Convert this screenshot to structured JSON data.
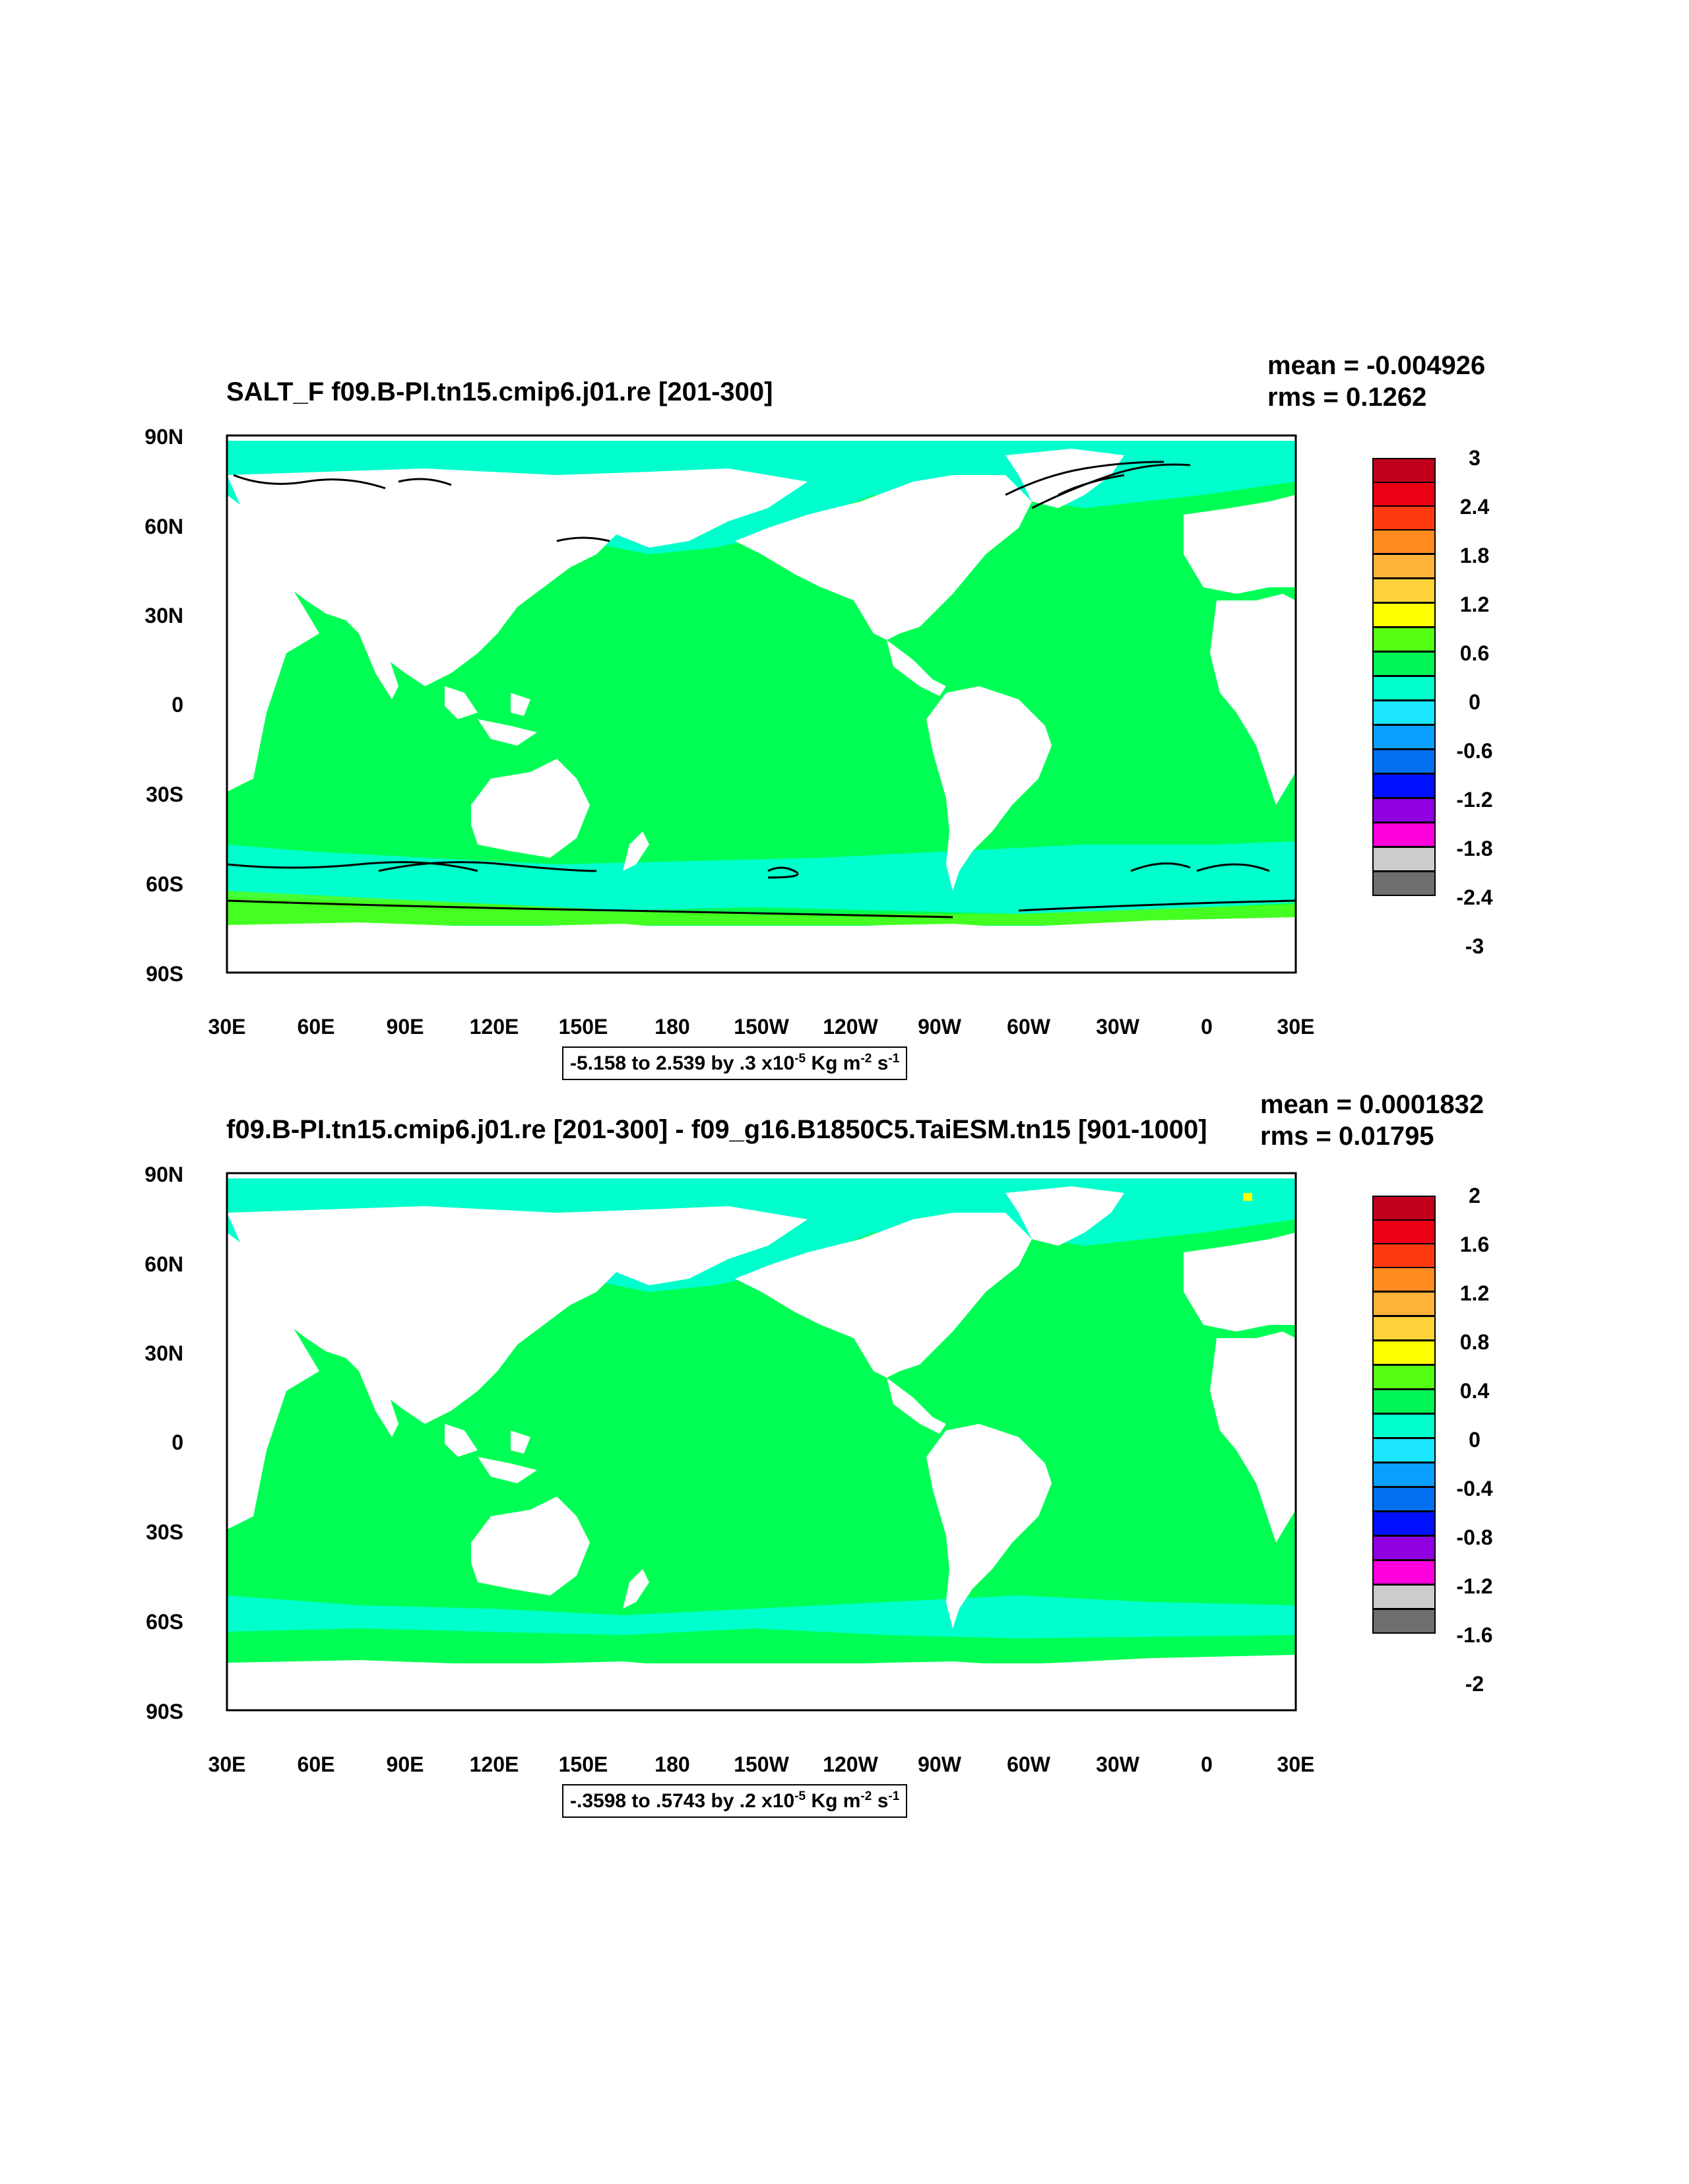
{
  "panels": [
    {
      "title": "SALT_F f09.B-PI.tn15.cmip6.j01.re [201-300]",
      "mean": "mean = -0.004926",
      "rms": "rms = 0.1262",
      "range_prefix": "-5.158 to 2.539 by .3 x10",
      "colorbar_labels": [
        "3",
        "2.4",
        "1.8",
        "1.2",
        "0.6",
        "0",
        "-0.6",
        "-1.2",
        "-1.8",
        "-2.4",
        "-3"
      ],
      "has_contours": true
    },
    {
      "title": "f09.B-PI.tn15.cmip6.j01.re [201-300] - f09_g16.B1850C5.TaiESM.tn15 [901-1000]",
      "mean": "mean = 0.0001832",
      "rms": "rms = 0.01795",
      "range_prefix": "-.3598 to .5743 by .2 x10",
      "colorbar_labels": [
        "2",
        "1.6",
        "1.2",
        "0.8",
        "0.4",
        "0",
        "-0.4",
        "-0.8",
        "-1.2",
        "-1.6",
        "-2"
      ],
      "has_contours": false
    }
  ],
  "range_units": {
    "exponent": "-5",
    "kg": "Kg m",
    "m_exp": "-2",
    "s": "s",
    "s_exp": "-1"
  },
  "axes": {
    "y_labels": [
      "90N",
      "60N",
      "30N",
      "0",
      "30S",
      "60S",
      "90S"
    ],
    "x_labels": [
      "30E",
      "60E",
      "90E",
      "120E",
      "150E",
      "180",
      "150W",
      "120W",
      "90W",
      "60W",
      "30W",
      "0",
      "30E"
    ]
  },
  "colorbar_colors": [
    "#c3001c",
    "#eb0015",
    "#ff3a10",
    "#ff8a1f",
    "#ffb23a",
    "#ffd23a",
    "#ffff00",
    "#55ff14",
    "#00f555",
    "#00ffcc",
    "#1ae6ff",
    "#0aa0ff",
    "#0070f0",
    "#0010ff",
    "#9000e0",
    "#ff00dd",
    "#cccccc",
    "#6e6e6e"
  ],
  "map_colors": {
    "ocean": "#00ff55",
    "band_light": "#00ffcc",
    "land": "#ffffff"
  }
}
